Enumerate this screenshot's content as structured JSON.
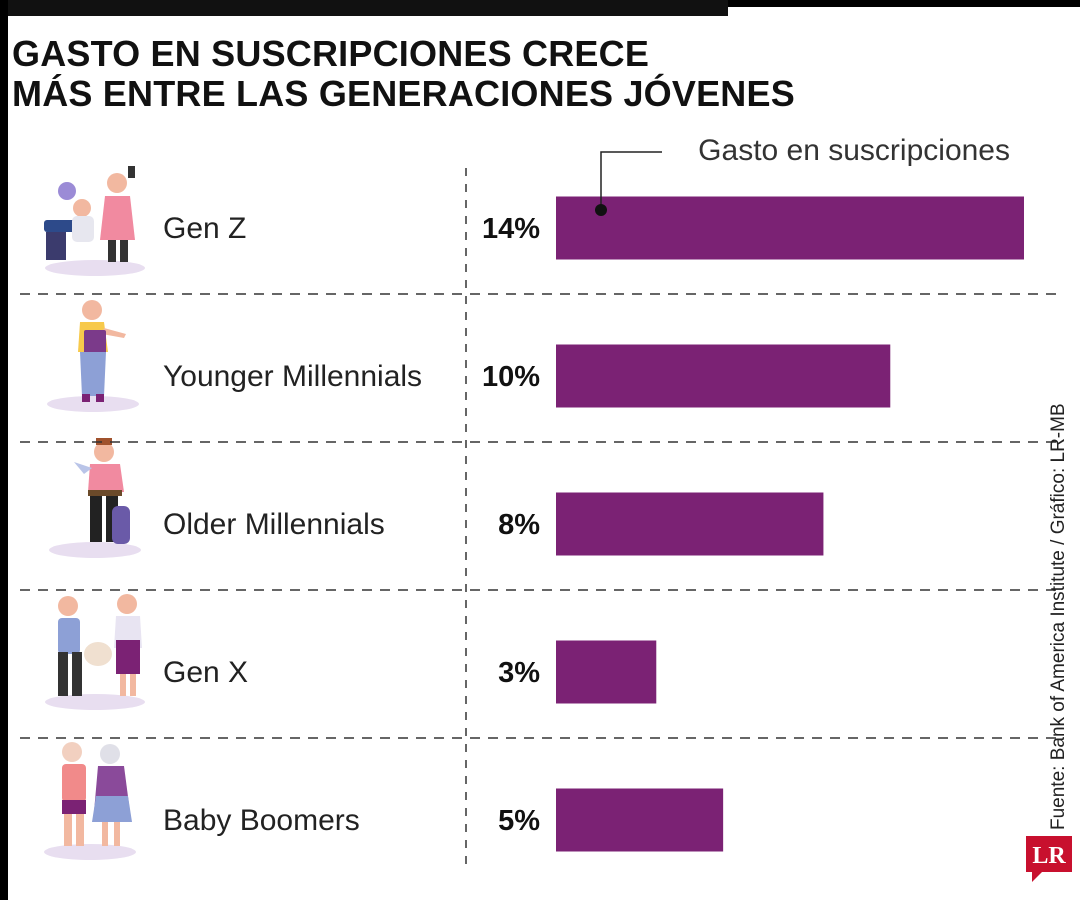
{
  "chart_data": {
    "type": "bar",
    "orientation": "horizontal",
    "title": "GASTO EN SUSCRIPCIONES CRECE\nMÁS ENTRE LAS GENERACIONES JÓVENES",
    "categories": [
      "Gen Z",
      "Younger Millennials",
      "Older Millennials",
      "Gen X",
      "Baby Boomers"
    ],
    "series": [
      {
        "name": "Gasto en suscripciones",
        "values": [
          14,
          10,
          8,
          3,
          5
        ]
      }
    ],
    "value_labels": [
      "14%",
      "10%",
      "8%",
      "3%",
      "5%"
    ],
    "unit": "%",
    "xlim": [
      0,
      14
    ],
    "bar_color": "#7b2274",
    "grid": false,
    "legend_placement": "top-right"
  },
  "source": "Fuente: Bank of America Institute / Gráfico: LR-MB",
  "logo": {
    "text": "LR",
    "color": "#c8102e"
  }
}
